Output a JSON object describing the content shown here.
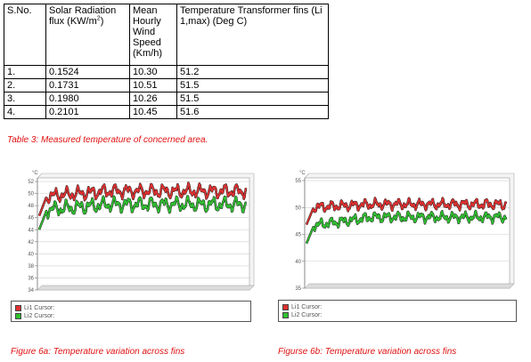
{
  "table": {
    "headers": [
      "S.No.",
      "Solar Radiation flux (KW/m",
      "Mean Hourly Wind Speed (Km/h)",
      "Temperature Transformer fins (Li 1,max) (Deg C)"
    ],
    "header_sup": "2",
    "header_close": ")",
    "rows": [
      [
        "1.",
        "0.1524",
        "10.30",
        "51.2"
      ],
      [
        "2.",
        "0.1731",
        "10.51",
        "51.5"
      ],
      [
        "3.",
        "0.1980",
        "10.26",
        "51.5"
      ],
      [
        "4.",
        "0.2101",
        "10.45",
        "51.6"
      ]
    ]
  },
  "table_caption": "Table 3: Measured temperature of concerned area.",
  "figures": [
    {
      "caption": "Figure 6a: Temperature variation across fins",
      "legend": [
        "Li1 Cursor:",
        "Li2 Cursor:"
      ]
    },
    {
      "caption": "Figurse 6b: Temperature variation across fins",
      "legend": [
        "Li1 Cursor:",
        "Li2 Cursor:"
      ]
    }
  ],
  "colors": {
    "li1": "#e03030",
    "li2": "#30c030",
    "caption": "#e01010"
  },
  "chart_data": [
    {
      "type": "line",
      "unit_label": "°C",
      "yticks": [
        34,
        36,
        38,
        40,
        42,
        44,
        46,
        48,
        50,
        52
      ],
      "ylim": [
        34,
        52.6
      ],
      "series": [
        {
          "name": "Li1",
          "color": "#e03030",
          "base_start": 49.5,
          "base_end": 50.4,
          "cycles": 17,
          "amp": 1.1
        },
        {
          "name": "Li2",
          "color": "#30c030",
          "base_start": 47.2,
          "base_end": 48.2,
          "cycles": 17,
          "amp": 1.2
        }
      ]
    },
    {
      "type": "line",
      "unit_label": "°C",
      "yticks": [
        35,
        40,
        45,
        50,
        55
      ],
      "ylim": [
        35,
        55.5
      ],
      "series": [
        {
          "name": "Li1",
          "color": "#e03030",
          "base_start": 50.0,
          "base_end": 50.6,
          "cycles": 18,
          "amp": 0.9
        },
        {
          "name": "Li2",
          "color": "#30c030",
          "base_start": 46.5,
          "base_end": 48.2,
          "cycles": 18,
          "amp": 0.9
        }
      ]
    }
  ]
}
